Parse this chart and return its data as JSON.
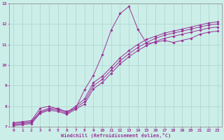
{
  "xlabel": "Windchill (Refroidissement éolien,°C)",
  "xlim": [
    -0.5,
    23.5
  ],
  "ylim": [
    7,
    13
  ],
  "xticks": [
    0,
    1,
    2,
    3,
    4,
    5,
    6,
    7,
    8,
    9,
    10,
    11,
    12,
    13,
    14,
    15,
    16,
    17,
    18,
    19,
    20,
    21,
    22,
    23
  ],
  "yticks": [
    7,
    8,
    9,
    10,
    11,
    12,
    13
  ],
  "background_color": "#cceee8",
  "grid_color": "#aad4ce",
  "line_color": "#993399",
  "font_color": "#993399",
  "lines": [
    {
      "x": [
        0,
        1,
        2,
        3,
        4,
        5,
        6,
        7,
        8,
        9,
        10,
        11,
        12,
        13,
        14,
        15,
        16,
        17,
        18,
        19,
        20,
        21,
        22,
        23
      ],
      "y": [
        7.2,
        7.25,
        7.3,
        7.9,
        8.0,
        7.85,
        7.75,
        7.9,
        8.8,
        9.5,
        10.5,
        11.7,
        12.5,
        12.85,
        11.75,
        11.05,
        11.1,
        11.2,
        11.1,
        11.2,
        11.3,
        11.5,
        11.6,
        11.65
      ]
    },
    {
      "x": [
        0,
        1,
        2,
        3,
        4,
        5,
        6,
        7,
        8,
        9,
        10,
        11,
        12,
        13,
        14,
        15,
        16,
        17,
        18,
        19,
        20,
        21,
        22,
        23
      ],
      "y": [
        7.15,
        7.2,
        7.25,
        7.75,
        7.9,
        7.9,
        7.7,
        8.0,
        8.35,
        9.15,
        9.45,
        9.9,
        10.35,
        10.7,
        11.0,
        11.25,
        11.4,
        11.55,
        11.65,
        11.75,
        11.85,
        11.95,
        12.05,
        12.1
      ]
    },
    {
      "x": [
        0,
        1,
        2,
        3,
        4,
        5,
        6,
        7,
        8,
        9,
        10,
        11,
        12,
        13,
        14,
        15,
        16,
        17,
        18,
        19,
        20,
        21,
        22,
        23
      ],
      "y": [
        7.1,
        7.15,
        7.2,
        7.7,
        7.85,
        7.82,
        7.65,
        7.92,
        8.22,
        9.0,
        9.3,
        9.75,
        10.2,
        10.55,
        10.85,
        11.1,
        11.3,
        11.45,
        11.55,
        11.65,
        11.75,
        11.85,
        11.95,
        12.0
      ]
    },
    {
      "x": [
        0,
        1,
        2,
        3,
        4,
        5,
        6,
        7,
        8,
        9,
        10,
        11,
        12,
        13,
        14,
        15,
        16,
        17,
        18,
        19,
        20,
        21,
        22,
        23
      ],
      "y": [
        7.05,
        7.1,
        7.15,
        7.65,
        7.8,
        7.75,
        7.6,
        7.85,
        8.1,
        8.85,
        9.15,
        9.6,
        10.05,
        10.4,
        10.7,
        10.95,
        11.15,
        11.3,
        11.4,
        11.5,
        11.6,
        11.7,
        11.8,
        11.85
      ]
    }
  ]
}
